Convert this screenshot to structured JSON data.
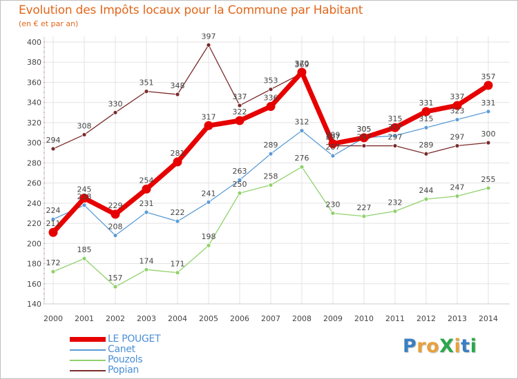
{
  "title": "Evolution des Impôts locaux pour la Commune par Habitant",
  "subtitle": "(en € et par an)",
  "chart_data": {
    "type": "line",
    "title": "Evolution des Impôts locaux pour la Commune par Habitant",
    "subtitle": "(en € et par an)",
    "x": [
      "2000",
      "2001",
      "2002",
      "2003",
      "2004",
      "2005",
      "2006",
      "2007",
      "2008",
      "2009",
      "2010",
      "2011",
      "2012",
      "2013",
      "2014"
    ],
    "ylim": [
      140,
      400
    ],
    "yticks": [
      140,
      160,
      180,
      200,
      220,
      240,
      260,
      280,
      300,
      320,
      340,
      360,
      380,
      400
    ],
    "grid": true,
    "legend_position": "bottom-left",
    "series": [
      {
        "name": "LE POUGET",
        "color": "#e60000",
        "values": [
          211,
          245,
          229,
          254,
          281,
          317,
          322,
          336,
          370,
          299,
          305,
          315,
          331,
          337,
          357
        ],
        "labels": [
          "211",
          "245",
          "229",
          "254",
          "281",
          "317",
          "322",
          "336",
          "370",
          "299",
          "305",
          "315",
          "331",
          "337",
          "357"
        ]
      },
      {
        "name": "Canet",
        "color": "#5b9bd5",
        "values": [
          224,
          238,
          208,
          231,
          222,
          241,
          263,
          289,
          312,
          287,
          305,
          307,
          315,
          323,
          331
        ],
        "labels": [
          "224",
          "238",
          "208",
          "231",
          "222",
          "241",
          "263",
          "289",
          "312",
          "287",
          "305",
          "307",
          "315",
          "323",
          "331"
        ]
      },
      {
        "name": "Pouzols",
        "color": "#8fd16b",
        "values": [
          172,
          185,
          157,
          174,
          171,
          198,
          250,
          258,
          276,
          230,
          227,
          232,
          244,
          247,
          255
        ],
        "labels": [
          "172",
          "185",
          "157",
          "174",
          "171",
          "198",
          "250",
          "258",
          "276",
          "230",
          "227",
          "232",
          "244",
          "247",
          "255"
        ]
      },
      {
        "name": "Popian",
        "color": "#7a2a2a",
        "values": [
          294,
          308,
          330,
          351,
          348,
          397,
          337,
          353,
          369,
          297,
          297,
          297,
          289,
          297,
          300
        ],
        "labels": [
          "294",
          "308",
          "330",
          "351",
          "348",
          "397",
          "337",
          "353",
          "369",
          "297",
          "297",
          "297",
          "289",
          "297",
          "300"
        ]
      }
    ]
  },
  "legend": [
    {
      "label": "LE POUGET",
      "color": "#e60000"
    },
    {
      "label": "Canet",
      "color": "#5b9bd5"
    },
    {
      "label": "Pouzols",
      "color": "#8fd16b"
    },
    {
      "label": "Popian",
      "color": "#7a2a2a"
    }
  ],
  "logo": {
    "text": "ProXiti",
    "letter_colors": [
      "#3a7fc1",
      "#e8a13a",
      "#e8a13a",
      "#2aa84a",
      "#e8a13a",
      "#3a7fc1",
      "#2aa84a"
    ]
  }
}
